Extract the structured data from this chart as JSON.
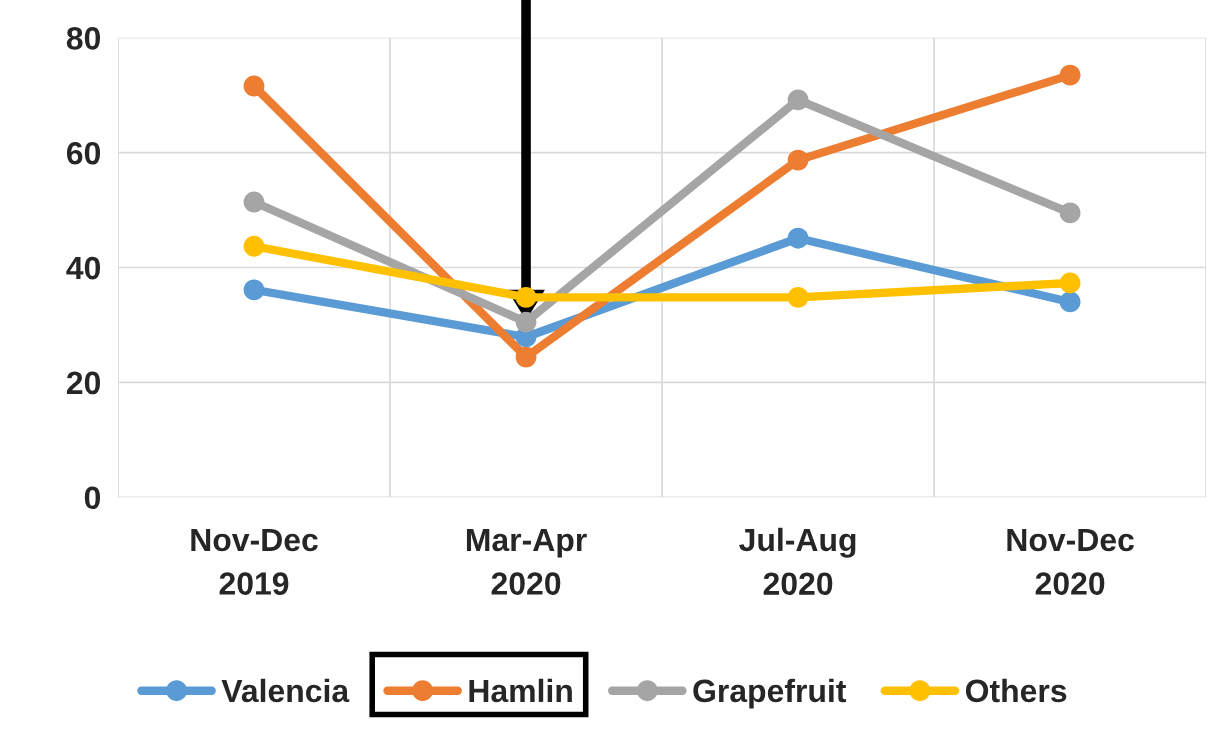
{
  "chart_data": {
    "type": "line",
    "categories": [
      "Nov-Dec\n2019",
      "Mar-Apr\n2020",
      "Jul-Aug\n2020",
      "Nov-Dec\n2020"
    ],
    "series": [
      {
        "name": "Valencia",
        "color": "#5b9bd5",
        "values": [
          36.1,
          27.9,
          45.1,
          34.0
        ]
      },
      {
        "name": "Hamlin",
        "color": "#ed7d31",
        "values": [
          71.6,
          24.4,
          58.7,
          73.5
        ]
      },
      {
        "name": "Grapefruit",
        "color": "#a5a5a5",
        "values": [
          51.4,
          30.5,
          69.2,
          49.5
        ]
      },
      {
        "name": "Others",
        "color": "#ffc000",
        "values": [
          43.7,
          34.8,
          34.8,
          37.3
        ]
      }
    ],
    "ylim": [
      0,
      80
    ],
    "yticks": [
      0,
      20,
      40,
      60,
      80
    ],
    "grid": true,
    "legend": "bottom",
    "marker": "circle",
    "line_style": "solid"
  }
}
